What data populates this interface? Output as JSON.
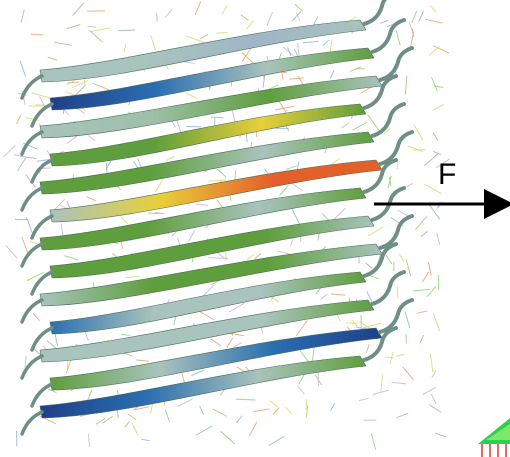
{
  "figure": {
    "force_label": "F",
    "colors": {
      "arrow": "#000000",
      "strand_green": "#5f9e3c",
      "strand_light": "#a9c3bd",
      "strand_blue": "#2b6fb0",
      "strand_navy": "#1f3f8a",
      "hot_orange": "#e4602a",
      "hot_yellow": "#e8cf3a",
      "sidechain_yellow": "#d9d76a",
      "sidechain_blue": "#8fb1d6",
      "sidechain_green": "#8fcf6e"
    }
  }
}
